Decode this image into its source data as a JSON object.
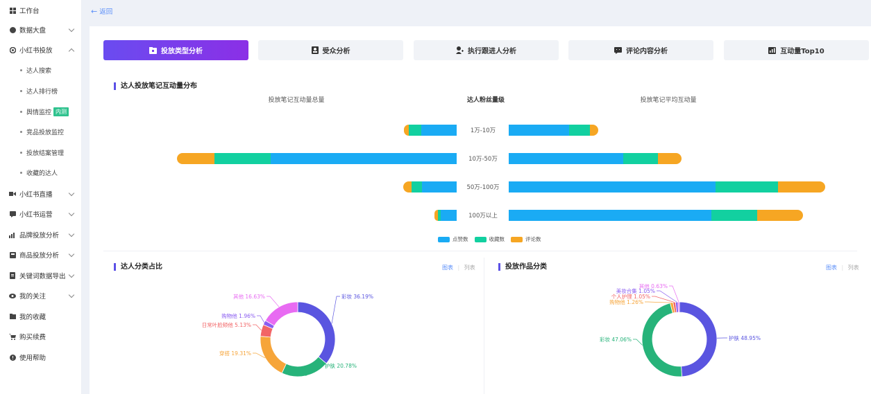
{
  "sidebar": {
    "items": [
      {
        "label": "工作台",
        "icon": "grid-icon",
        "expandable": false
      },
      {
        "label": "数据大盘",
        "icon": "pie-icon",
        "expandable": true
      },
      {
        "label": "小红书投放",
        "icon": "xhs-icon",
        "expandable": true,
        "expanded": true
      },
      {
        "label": "小红书直播",
        "icon": "video-icon",
        "expandable": true
      },
      {
        "label": "小红书运营",
        "icon": "chat-icon",
        "expandable": true
      },
      {
        "label": "品牌投放分析",
        "icon": "bar-icon",
        "expandable": true
      },
      {
        "label": "商品投放分析",
        "icon": "goods-icon",
        "expandable": true
      },
      {
        "label": "关键词数据导出",
        "icon": "export-icon",
        "expandable": true
      },
      {
        "label": "我的关注",
        "icon": "eye-icon",
        "expandable": true
      },
      {
        "label": "我的收藏",
        "icon": "folder-icon",
        "expandable": false
      },
      {
        "label": "购买续费",
        "icon": "cart-icon",
        "expandable": false
      },
      {
        "label": "使用帮助",
        "icon": "help-icon",
        "expandable": false
      }
    ],
    "subitems": [
      {
        "label": "达人搜索"
      },
      {
        "label": "达人排行榜"
      },
      {
        "label": "舆情监控",
        "badge": "内测"
      },
      {
        "label": "竞品投放监控"
      },
      {
        "label": "投放结案管理"
      },
      {
        "label": "收藏的达人"
      }
    ]
  },
  "back_label": "返回",
  "tabs": [
    {
      "label": "投放类型分析",
      "icon": "folder-icon",
      "active": true
    },
    {
      "label": "受众分析",
      "icon": "person-card-icon",
      "active": false
    },
    {
      "label": "执行跟进人分析",
      "icon": "user-add-icon",
      "active": false
    },
    {
      "label": "评论内容分析",
      "icon": "comment-icon",
      "active": false
    },
    {
      "label": "互动量Top10",
      "icon": "chart-icon",
      "active": false
    }
  ],
  "bar_section": {
    "title": "达人投放笔记互动量分布",
    "left_header": "投放笔记互动量总量",
    "center_header": "达人粉丝量级",
    "right_header": "投放笔记平均互动量",
    "legend": [
      {
        "label": "点赞数",
        "color": "#1aabf4"
      },
      {
        "label": "收藏数",
        "color": "#12d0a0"
      },
      {
        "label": "评论数",
        "color": "#f6a623"
      }
    ]
  },
  "chart_data": [
    {
      "type": "bar",
      "orientation": "horizontal",
      "stacked": true,
      "categories": [
        "1万-10万",
        "10万-50万",
        "50万-100万",
        "100万以上"
      ],
      "left_series": [
        {
          "name": "点赞数",
          "values": [
            51,
            268,
            50,
            23
          ]
        },
        {
          "name": "收藏数",
          "values": [
            18,
            81,
            15,
            4
          ]
        },
        {
          "name": "评论数",
          "values": [
            7,
            54,
            12,
            5
          ]
        }
      ],
      "right_series": [
        {
          "name": "点赞数",
          "values": [
            87,
            165,
            298,
            292
          ]
        },
        {
          "name": "收藏数",
          "values": [
            30,
            50,
            90,
            66
          ]
        },
        {
          "name": "评论数",
          "values": [
            12,
            34,
            68,
            66
          ]
        }
      ]
    },
    {
      "type": "pie",
      "donut": true,
      "title": "达人分类占比",
      "slices": [
        {
          "label": "彩妆",
          "value": 36.19,
          "color": "#5a55e0"
        },
        {
          "label": "护肤",
          "value": 20.78,
          "color": "#27b37a"
        },
        {
          "label": "穿搭",
          "value": 19.31,
          "color": "#f6a53a"
        },
        {
          "label": "日常叶脸颊他",
          "value": 5.13,
          "color": "#f26466"
        },
        {
          "label": "购物他",
          "value": 1.96,
          "color": "#8a5cf0"
        },
        {
          "label": "其他",
          "value": 16.63,
          "color": "#e86bf2"
        }
      ]
    },
    {
      "type": "pie",
      "donut": true,
      "title": "投放作品分类",
      "slices": [
        {
          "label": "护肤",
          "value": 48.95,
          "color": "#5a55e0"
        },
        {
          "label": "彩妆",
          "value": 47.06,
          "color": "#27b37a"
        },
        {
          "label": "购物他",
          "value": 1.26,
          "color": "#f6a53a"
        },
        {
          "label": "个人护理",
          "value": 1.05,
          "color": "#f26466"
        },
        {
          "label": "美妆合集",
          "value": 1.05,
          "color": "#8a5cf0"
        },
        {
          "label": "其他",
          "value": 0.63,
          "color": "#e86bf2"
        }
      ]
    }
  ],
  "pie_left": {
    "title": "达人分类占比",
    "toggle_chart": "图表",
    "toggle_list": "列表"
  },
  "pie_right": {
    "title": "投放作品分类",
    "toggle_chart": "图表",
    "toggle_list": "列表"
  }
}
